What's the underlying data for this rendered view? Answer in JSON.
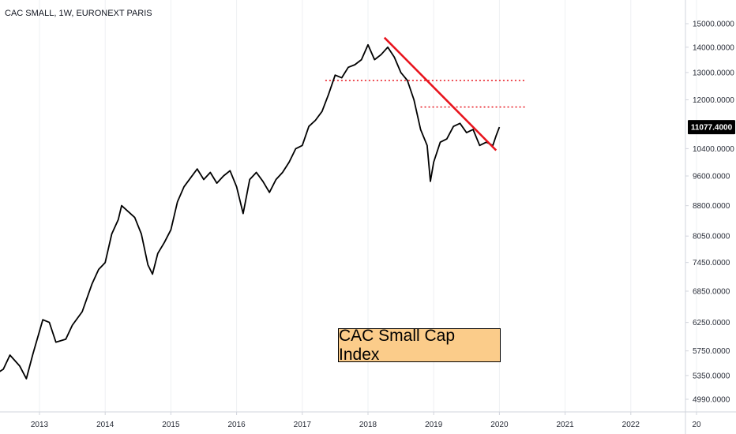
{
  "header": {
    "title": "CAC SMALL, 1W, EURONEXT PARIS"
  },
  "annotation": {
    "text": "CAC Small Cap Index"
  },
  "colors": {
    "line": "#000000",
    "trendline": "#e8141d",
    "level": "#e8141d",
    "price_tag_bg": "#000000",
    "annotation_bg": "#fbcc8a",
    "grid": "#eef0f3",
    "axis_border": "#d1d4dc"
  },
  "chart_data": {
    "type": "line",
    "x_axis_ticks": [
      "2013",
      "2014",
      "2015",
      "2016",
      "2017",
      "2018",
      "2019",
      "2020",
      "2021",
      "2022",
      "20"
    ],
    "y_axis_ticks": [
      "15000.0000",
      "14000.0000",
      "13000.0000",
      "12000.0000",
      "10400.0000",
      "9600.0000",
      "8800.0000",
      "8050.0000",
      "7450.0000",
      "6850.0000",
      "6250.0000",
      "5750.0000",
      "5350.0000",
      "4990.0000"
    ],
    "y_scale": "log",
    "current_price": "11077.4000",
    "series": [
      {
        "points": [
          [
            2012.3,
            5350
          ],
          [
            2012.45,
            5450
          ],
          [
            2012.55,
            5680
          ],
          [
            2012.7,
            5500
          ],
          [
            2012.8,
            5300
          ],
          [
            2012.9,
            5700
          ],
          [
            2013.05,
            6300
          ],
          [
            2013.15,
            6250
          ],
          [
            2013.25,
            5900
          ],
          [
            2013.4,
            5950
          ],
          [
            2013.5,
            6200
          ],
          [
            2013.65,
            6450
          ],
          [
            2013.8,
            7000
          ],
          [
            2013.9,
            7300
          ],
          [
            2014.0,
            7450
          ],
          [
            2014.1,
            8100
          ],
          [
            2014.2,
            8450
          ],
          [
            2014.25,
            8800
          ],
          [
            2014.35,
            8650
          ],
          [
            2014.45,
            8500
          ],
          [
            2014.55,
            8100
          ],
          [
            2014.65,
            7400
          ],
          [
            2014.72,
            7200
          ],
          [
            2014.8,
            7650
          ],
          [
            2014.9,
            7900
          ],
          [
            2015.0,
            8200
          ],
          [
            2015.1,
            8900
          ],
          [
            2015.2,
            9300
          ],
          [
            2015.3,
            9550
          ],
          [
            2015.4,
            9800
          ],
          [
            2015.5,
            9500
          ],
          [
            2015.6,
            9700
          ],
          [
            2015.7,
            9400
          ],
          [
            2015.8,
            9600
          ],
          [
            2015.9,
            9750
          ],
          [
            2016.0,
            9300
          ],
          [
            2016.1,
            8600
          ],
          [
            2016.2,
            9500
          ],
          [
            2016.3,
            9700
          ],
          [
            2016.4,
            9450
          ],
          [
            2016.5,
            9150
          ],
          [
            2016.6,
            9500
          ],
          [
            2016.7,
            9700
          ],
          [
            2016.8,
            10000
          ],
          [
            2016.9,
            10400
          ],
          [
            2017.0,
            10500
          ],
          [
            2017.1,
            11100
          ],
          [
            2017.2,
            11300
          ],
          [
            2017.3,
            11600
          ],
          [
            2017.4,
            12200
          ],
          [
            2017.5,
            12900
          ],
          [
            2017.6,
            12800
          ],
          [
            2017.7,
            13200
          ],
          [
            2017.8,
            13300
          ],
          [
            2017.9,
            13500
          ],
          [
            2018.0,
            14100
          ],
          [
            2018.1,
            13500
          ],
          [
            2018.2,
            13700
          ],
          [
            2018.3,
            14000
          ],
          [
            2018.4,
            13600
          ],
          [
            2018.5,
            13000
          ],
          [
            2018.6,
            12700
          ],
          [
            2018.7,
            12000
          ],
          [
            2018.8,
            11000
          ],
          [
            2018.9,
            10500
          ],
          [
            2018.95,
            9450
          ],
          [
            2019.0,
            10000
          ],
          [
            2019.1,
            10600
          ],
          [
            2019.2,
            10700
          ],
          [
            2019.3,
            11100
          ],
          [
            2019.4,
            11200
          ],
          [
            2019.5,
            10900
          ],
          [
            2019.6,
            11000
          ],
          [
            2019.7,
            10500
          ],
          [
            2019.8,
            10600
          ],
          [
            2019.9,
            10500
          ],
          [
            2019.95,
            10800
          ],
          [
            2020.0,
            11077
          ]
        ]
      }
    ],
    "drawings": {
      "trendline": [
        [
          2018.25,
          14400
        ],
        [
          2019.95,
          10350
        ]
      ],
      "dotted_levels": [
        {
          "value": 12700,
          "x_from": 2017.35,
          "x_to": 2020.4
        },
        {
          "value": 11750,
          "x_from": 2018.8,
          "x_to": 2020.4
        }
      ]
    }
  }
}
